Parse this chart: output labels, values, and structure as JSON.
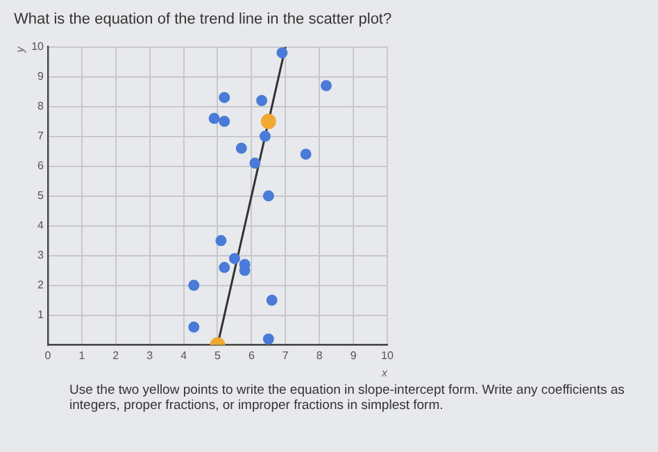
{
  "chart_data": {
    "type": "scatter",
    "title": "What is the equation of the trend line in the scatter plot?",
    "xlabel": "x",
    "ylabel": "y",
    "xlim": [
      0,
      10
    ],
    "ylim": [
      0,
      10
    ],
    "xticks": [
      0,
      1,
      2,
      3,
      4,
      5,
      6,
      7,
      8,
      9,
      10
    ],
    "yticks": [
      {
        "value": 0,
        "label": null
      },
      1,
      2,
      3,
      4,
      5,
      6,
      7,
      8,
      9,
      10
    ],
    "grid": true,
    "legend": false,
    "marker": "circle",
    "series": [
      {
        "type": "scatter",
        "color": "#4a7bd8",
        "x": [
          6.9,
          8.2,
          5.2,
          6.3,
          4.9,
          5.2,
          6.4,
          5.7,
          7.6,
          6.1,
          6.5,
          5.1,
          5.5,
          5.2,
          5.8,
          5.8,
          4.3,
          6.6,
          4.3,
          6.5
        ],
        "values": [
          9.8,
          8.7,
          8.3,
          8.2,
          7.6,
          7.5,
          7.0,
          6.6,
          6.4,
          6.1,
          5.0,
          3.5,
          2.9,
          2.6,
          2.7,
          2.5,
          2.0,
          1.5,
          0.6,
          0.2
        ]
      },
      {
        "type": "line",
        "color": "#333333",
        "x": [
          5,
          7
        ],
        "values": [
          0,
          10
        ],
        "marker": "none"
      },
      {
        "type": "scatter",
        "color": "#f0a830",
        "x": [
          5,
          6.5
        ],
        "values": [
          0,
          7.5
        ]
      }
    ],
    "annotations": [
      "Use the two yellow points to write the equation in slope-intercept form. Write any coefficients as integers, proper fractions, or improper fractions in simplest form."
    ]
  }
}
